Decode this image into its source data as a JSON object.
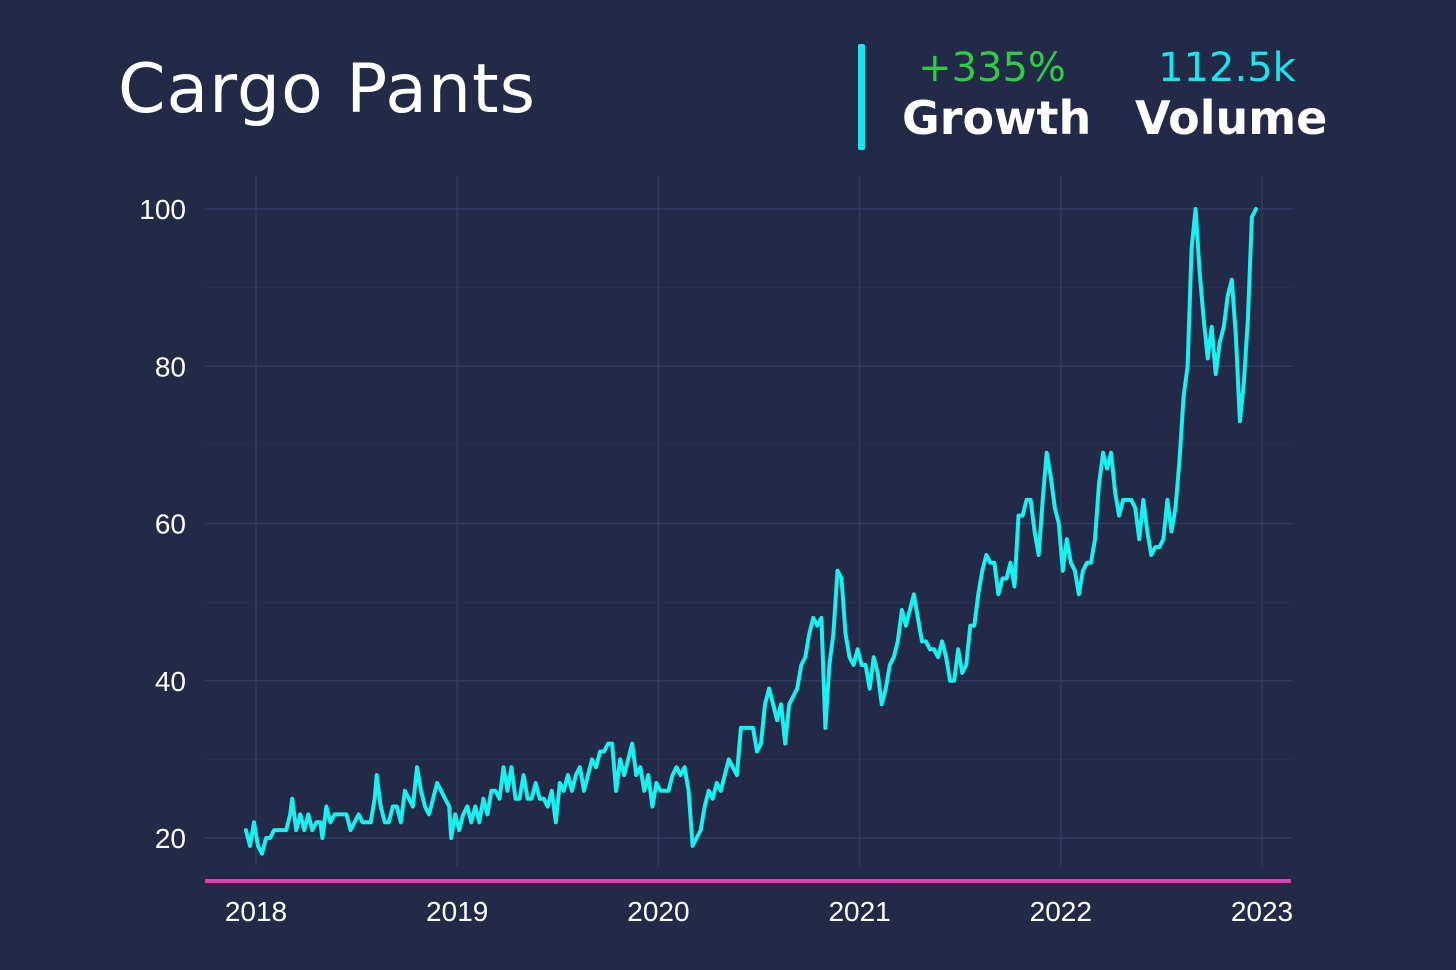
{
  "header": {
    "title": "Cargo Pants",
    "growth_value": "+335%",
    "growth_label": "Growth",
    "volume_value": "112.5k",
    "volume_label": "Volume"
  },
  "colors": {
    "background": "#222a47",
    "line": "#19f0f0",
    "grid": "#303a63",
    "baseline": "#e23fb0",
    "growth": "#2ecc40",
    "volume": "#19e6ec",
    "text": "#ffffff"
  },
  "chart_data": {
    "type": "line",
    "title": "Cargo Pants",
    "xlabel": "",
    "ylabel": "",
    "grid": true,
    "legend": "none",
    "xlim": [
      2017.9,
      2023.15
    ],
    "ylim": [
      15,
      104
    ],
    "x_ticks": [
      "2018",
      "2019",
      "2020",
      "2021",
      "2022",
      "2023"
    ],
    "y_ticks": [
      20,
      40,
      60,
      80,
      100
    ],
    "series": [
      {
        "points": [
          [
            2017.95,
            21
          ],
          [
            2017.97,
            19
          ],
          [
            2017.99,
            22
          ],
          [
            2018.01,
            19
          ],
          [
            2018.03,
            18
          ],
          [
            2018.05,
            20
          ],
          [
            2018.07,
            20
          ],
          [
            2018.09,
            21
          ],
          [
            2018.11,
            21
          ],
          [
            2018.13,
            21
          ],
          [
            2018.15,
            21
          ],
          [
            2018.17,
            23
          ],
          [
            2018.18,
            25
          ],
          [
            2018.2,
            21
          ],
          [
            2018.22,
            23
          ],
          [
            2018.24,
            21
          ],
          [
            2018.26,
            23
          ],
          [
            2018.28,
            21
          ],
          [
            2018.3,
            22
          ],
          [
            2018.32,
            22
          ],
          [
            2018.33,
            20
          ],
          [
            2018.35,
            24
          ],
          [
            2018.37,
            22
          ],
          [
            2018.39,
            23
          ],
          [
            2018.41,
            23
          ],
          [
            2018.43,
            23
          ],
          [
            2018.45,
            23
          ],
          [
            2018.47,
            21
          ],
          [
            2018.49,
            22
          ],
          [
            2018.51,
            23
          ],
          [
            2018.53,
            22
          ],
          [
            2018.55,
            22
          ],
          [
            2018.57,
            22
          ],
          [
            2018.59,
            25
          ],
          [
            2018.6,
            28
          ],
          [
            2018.62,
            24
          ],
          [
            2018.64,
            22
          ],
          [
            2018.66,
            22
          ],
          [
            2018.68,
            24
          ],
          [
            2018.7,
            24
          ],
          [
            2018.72,
            22
          ],
          [
            2018.74,
            26
          ],
          [
            2018.76,
            25
          ],
          [
            2018.78,
            24
          ],
          [
            2018.8,
            29
          ],
          [
            2018.82,
            26
          ],
          [
            2018.84,
            24
          ],
          [
            2018.86,
            23
          ],
          [
            2018.88,
            25
          ],
          [
            2018.9,
            27
          ],
          [
            2018.92,
            26
          ],
          [
            2018.94,
            25
          ],
          [
            2018.96,
            24
          ],
          [
            2018.97,
            20
          ],
          [
            2018.99,
            23
          ],
          [
            2019.01,
            21
          ],
          [
            2019.03,
            23
          ],
          [
            2019.05,
            24
          ],
          [
            2019.07,
            22
          ],
          [
            2019.09,
            24
          ],
          [
            2019.11,
            22
          ],
          [
            2019.13,
            25
          ],
          [
            2019.15,
            23
          ],
          [
            2019.17,
            26
          ],
          [
            2019.19,
            26
          ],
          [
            2019.21,
            25
          ],
          [
            2019.23,
            29
          ],
          [
            2019.25,
            26
          ],
          [
            2019.27,
            29
          ],
          [
            2019.29,
            25
          ],
          [
            2019.31,
            25
          ],
          [
            2019.33,
            28
          ],
          [
            2019.35,
            25
          ],
          [
            2019.37,
            25
          ],
          [
            2019.39,
            27
          ],
          [
            2019.41,
            25
          ],
          [
            2019.43,
            25
          ],
          [
            2019.45,
            24
          ],
          [
            2019.47,
            26
          ],
          [
            2019.49,
            22
          ],
          [
            2019.51,
            27
          ],
          [
            2019.53,
            26
          ],
          [
            2019.55,
            28
          ],
          [
            2019.57,
            26
          ],
          [
            2019.59,
            28
          ],
          [
            2019.61,
            29
          ],
          [
            2019.63,
            26
          ],
          [
            2019.65,
            28
          ],
          [
            2019.67,
            30
          ],
          [
            2019.69,
            29
          ],
          [
            2019.71,
            31
          ],
          [
            2019.73,
            31
          ],
          [
            2019.75,
            32
          ],
          [
            2019.77,
            32
          ],
          [
            2019.79,
            26
          ],
          [
            2019.81,
            30
          ],
          [
            2019.83,
            28
          ],
          [
            2019.85,
            30
          ],
          [
            2019.87,
            32
          ],
          [
            2019.89,
            28
          ],
          [
            2019.91,
            29
          ],
          [
            2019.93,
            26
          ],
          [
            2019.95,
            28
          ],
          [
            2019.97,
            24
          ],
          [
            2019.99,
            27
          ],
          [
            2020.01,
            26
          ],
          [
            2020.03,
            26
          ],
          [
            2020.05,
            26
          ],
          [
            2020.07,
            28
          ],
          [
            2020.09,
            29
          ],
          [
            2020.11,
            28
          ],
          [
            2020.13,
            29
          ],
          [
            2020.15,
            26
          ],
          [
            2020.17,
            19
          ],
          [
            2020.19,
            20
          ],
          [
            2020.21,
            21
          ],
          [
            2020.23,
            24
          ],
          [
            2020.25,
            26
          ],
          [
            2020.27,
            25
          ],
          [
            2020.29,
            27
          ],
          [
            2020.31,
            26
          ],
          [
            2020.33,
            28
          ],
          [
            2020.35,
            30
          ],
          [
            2020.37,
            29
          ],
          [
            2020.39,
            28
          ],
          [
            2020.41,
            34
          ],
          [
            2020.43,
            34
          ],
          [
            2020.45,
            34
          ],
          [
            2020.47,
            34
          ],
          [
            2020.49,
            31
          ],
          [
            2020.51,
            32
          ],
          [
            2020.53,
            37
          ],
          [
            2020.55,
            39
          ],
          [
            2020.57,
            37
          ],
          [
            2020.59,
            35
          ],
          [
            2020.61,
            37
          ],
          [
            2020.63,
            32
          ],
          [
            2020.65,
            37
          ],
          [
            2020.67,
            38
          ],
          [
            2020.69,
            39
          ],
          [
            2020.71,
            42
          ],
          [
            2020.73,
            43
          ],
          [
            2020.75,
            46
          ],
          [
            2020.77,
            48
          ],
          [
            2020.79,
            47
          ],
          [
            2020.81,
            48
          ],
          [
            2020.83,
            34
          ],
          [
            2020.85,
            42
          ],
          [
            2020.87,
            46
          ],
          [
            2020.89,
            54
          ],
          [
            2020.91,
            53
          ],
          [
            2020.93,
            46
          ],
          [
            2020.95,
            43
          ],
          [
            2020.97,
            42
          ],
          [
            2020.99,
            44
          ],
          [
            2021.01,
            42
          ],
          [
            2021.03,
            42
          ],
          [
            2021.05,
            39
          ],
          [
            2021.07,
            43
          ],
          [
            2021.09,
            41
          ],
          [
            2021.11,
            37
          ],
          [
            2021.13,
            39
          ],
          [
            2021.15,
            42
          ],
          [
            2021.17,
            43
          ],
          [
            2021.19,
            45
          ],
          [
            2021.21,
            49
          ],
          [
            2021.23,
            47
          ],
          [
            2021.25,
            49
          ],
          [
            2021.27,
            51
          ],
          [
            2021.29,
            48
          ],
          [
            2021.31,
            45
          ],
          [
            2021.33,
            45
          ],
          [
            2021.35,
            44
          ],
          [
            2021.37,
            44
          ],
          [
            2021.39,
            43
          ],
          [
            2021.41,
            45
          ],
          [
            2021.43,
            43
          ],
          [
            2021.45,
            40
          ],
          [
            2021.47,
            40
          ],
          [
            2021.49,
            44
          ],
          [
            2021.51,
            41
          ],
          [
            2021.53,
            42
          ],
          [
            2021.55,
            47
          ],
          [
            2021.57,
            47
          ],
          [
            2021.59,
            51
          ],
          [
            2021.61,
            54
          ],
          [
            2021.63,
            56
          ],
          [
            2021.65,
            55
          ],
          [
            2021.67,
            55
          ],
          [
            2021.69,
            51
          ],
          [
            2021.71,
            53
          ],
          [
            2021.73,
            53
          ],
          [
            2021.75,
            55
          ],
          [
            2021.77,
            52
          ],
          [
            2021.79,
            61
          ],
          [
            2021.81,
            61
          ],
          [
            2021.83,
            63
          ],
          [
            2021.85,
            63
          ],
          [
            2021.87,
            59
          ],
          [
            2021.89,
            56
          ],
          [
            2021.91,
            63
          ],
          [
            2021.93,
            69
          ],
          [
            2021.95,
            66
          ],
          [
            2021.97,
            62
          ],
          [
            2021.99,
            60
          ],
          [
            2022.01,
            54
          ],
          [
            2022.03,
            58
          ],
          [
            2022.05,
            55
          ],
          [
            2022.07,
            54
          ],
          [
            2022.09,
            51
          ],
          [
            2022.11,
            54
          ],
          [
            2022.13,
            55
          ],
          [
            2022.15,
            55
          ],
          [
            2022.17,
            58
          ],
          [
            2022.19,
            65
          ],
          [
            2022.21,
            69
          ],
          [
            2022.23,
            67
          ],
          [
            2022.25,
            69
          ],
          [
            2022.27,
            64
          ],
          [
            2022.29,
            61
          ],
          [
            2022.31,
            63
          ],
          [
            2022.33,
            63
          ],
          [
            2022.35,
            63
          ],
          [
            2022.37,
            62
          ],
          [
            2022.39,
            58
          ],
          [
            2022.41,
            63
          ],
          [
            2022.43,
            59
          ],
          [
            2022.45,
            56
          ],
          [
            2022.47,
            57
          ],
          [
            2022.49,
            57
          ],
          [
            2022.51,
            58
          ],
          [
            2022.53,
            63
          ],
          [
            2022.55,
            59
          ],
          [
            2022.57,
            62
          ],
          [
            2022.59,
            68
          ],
          [
            2022.61,
            76
          ],
          [
            2022.63,
            80
          ],
          [
            2022.65,
            95
          ],
          [
            2022.67,
            100
          ],
          [
            2022.69,
            92
          ],
          [
            2022.71,
            86
          ],
          [
            2022.73,
            81
          ],
          [
            2022.75,
            85
          ],
          [
            2022.77,
            79
          ],
          [
            2022.79,
            83
          ],
          [
            2022.81,
            85
          ],
          [
            2022.83,
            89
          ],
          [
            2022.85,
            91
          ],
          [
            2022.87,
            84
          ],
          [
            2022.89,
            73
          ],
          [
            2022.91,
            78
          ],
          [
            2022.93,
            86
          ],
          [
            2022.95,
            99
          ],
          [
            2022.97,
            100
          ]
        ]
      }
    ]
  }
}
